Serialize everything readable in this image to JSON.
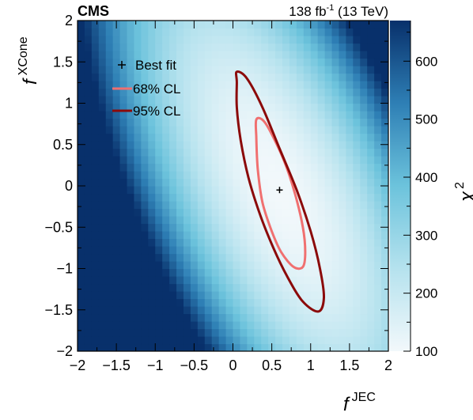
{
  "header": {
    "experiment": "CMS",
    "lumi_value": "138 fb",
    "lumi_exp": "-1",
    "energy": " (13 TeV)"
  },
  "axes": {
    "x_label_main": "f",
    "x_label_sup": "JEC",
    "y_label_main": "f",
    "y_label_sup": "XCone",
    "z_label_main": "χ",
    "z_label_sup": "2"
  },
  "legend": {
    "best_fit": "Best fit",
    "cl68": "68% CL",
    "cl95": "95% CL"
  },
  "colors": {
    "cl68": "#f07070",
    "cl95": "#8b0a0a",
    "z_low": "#f2f8fb",
    "z_mid": "#6cc3dc",
    "z_high": "#08306b"
  },
  "chart_data": {
    "type": "heatmap",
    "title": "",
    "xlabel": "f JEC",
    "ylabel": "f XCone",
    "zlabel": "χ2",
    "xlim": [
      -2,
      2
    ],
    "ylim": [
      -2,
      2
    ],
    "zlim": [
      100,
      670
    ],
    "x_ticks": [
      -2,
      -1.5,
      -1,
      -0.5,
      0,
      0.5,
      1,
      1.5,
      2
    ],
    "y_ticks": [
      -2,
      -1.5,
      -1,
      -0.5,
      0,
      0.5,
      1,
      1.5,
      2
    ],
    "z_ticks": [
      100,
      200,
      300,
      400,
      500,
      600
    ],
    "tick_labels_x": [
      "−2",
      "−1.5",
      "−1",
      "−0.5",
      "0",
      "0.5",
      "1",
      "1.5",
      "2"
    ],
    "tick_labels_y": [
      "−2",
      "−1.5",
      "−1",
      "−0.5",
      "0",
      "0.5",
      "1",
      "1.5",
      "2"
    ],
    "tick_labels_z": [
      "100",
      "200",
      "300",
      "400",
      "500",
      "600"
    ],
    "best_fit": {
      "x": 0.6,
      "y": -0.05
    },
    "contours": [
      {
        "name": "68% CL",
        "points": [
          [
            0.3,
            0.8
          ],
          [
            0.3,
            0.6
          ],
          [
            0.32,
            0.2
          ],
          [
            0.38,
            -0.2
          ],
          [
            0.5,
            -0.55
          ],
          [
            0.62,
            -0.8
          ],
          [
            0.78,
            -0.98
          ],
          [
            0.9,
            -0.98
          ],
          [
            0.93,
            -0.8
          ],
          [
            0.9,
            -0.5
          ],
          [
            0.8,
            -0.1
          ],
          [
            0.66,
            0.3
          ],
          [
            0.48,
            0.66
          ],
          [
            0.38,
            0.8
          ]
        ]
      },
      {
        "name": "95% CL",
        "points": [
          [
            0.05,
            1.38
          ],
          [
            0.05,
            1.25
          ],
          [
            0.05,
            0.95
          ],
          [
            0.1,
            0.55
          ],
          [
            0.2,
            0.1
          ],
          [
            0.35,
            -0.35
          ],
          [
            0.52,
            -0.75
          ],
          [
            0.7,
            -1.1
          ],
          [
            0.9,
            -1.4
          ],
          [
            1.1,
            -1.52
          ],
          [
            1.17,
            -1.35
          ],
          [
            1.12,
            -1.0
          ],
          [
            1.0,
            -0.55
          ],
          [
            0.82,
            -0.05
          ],
          [
            0.6,
            0.45
          ],
          [
            0.38,
            0.95
          ],
          [
            0.18,
            1.3
          ]
        ]
      }
    ]
  }
}
